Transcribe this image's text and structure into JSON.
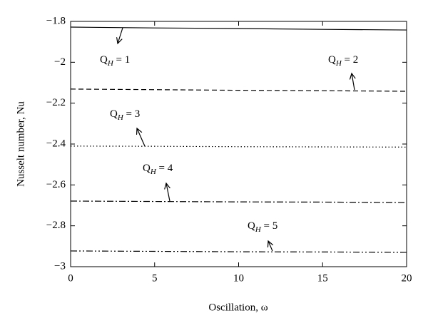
{
  "chart_data": {
    "type": "line",
    "xlabel": "Oscillation, ω",
    "ylabel": "Nusselt number, Nu",
    "x": [
      0,
      5,
      10,
      15,
      20
    ],
    "series": [
      {
        "name": "QH = 1",
        "color": "#000000",
        "linestyle": "solid",
        "values": [
          -1.828,
          -1.832,
          -1.835,
          -1.839,
          -1.842
        ]
      },
      {
        "name": "QH = 2",
        "color": "#000000",
        "linestyle": "dashed",
        "values": [
          -2.131,
          -2.134,
          -2.137,
          -2.139,
          -2.142
        ]
      },
      {
        "name": "QH = 3",
        "color": "#000000",
        "linestyle": "dotted",
        "values": [
          -2.41,
          -2.411,
          -2.413,
          -2.414,
          -2.415
        ]
      },
      {
        "name": "QH = 4",
        "color": "#000000",
        "linestyle": "dashdot",
        "values": [
          -2.679,
          -2.681,
          -2.683,
          -2.684,
          -2.686
        ]
      },
      {
        "name": "QH = 5",
        "color": "#000000",
        "linestyle": "dashdotdot",
        "values": [
          -2.923,
          -2.925,
          -2.927,
          -2.928,
          -2.93
        ]
      }
    ],
    "xlim": [
      0,
      20
    ],
    "xticks": [
      0,
      5,
      10,
      15,
      20
    ],
    "ylim": [
      -3,
      -1.8
    ],
    "yticks": [
      {
        "value": -3,
        "label": "−3"
      },
      {
        "value": -2.8,
        "label": "−2.8"
      },
      {
        "value": -2.6,
        "label": "−2.6"
      },
      {
        "value": -2.4,
        "label": "−2.4"
      },
      {
        "value": -2.2,
        "label": "−2.2"
      },
      {
        "value": -2,
        "label": "−2"
      },
      {
        "value": -1.8,
        "label": "−1.8"
      }
    ],
    "grid": false
  }
}
